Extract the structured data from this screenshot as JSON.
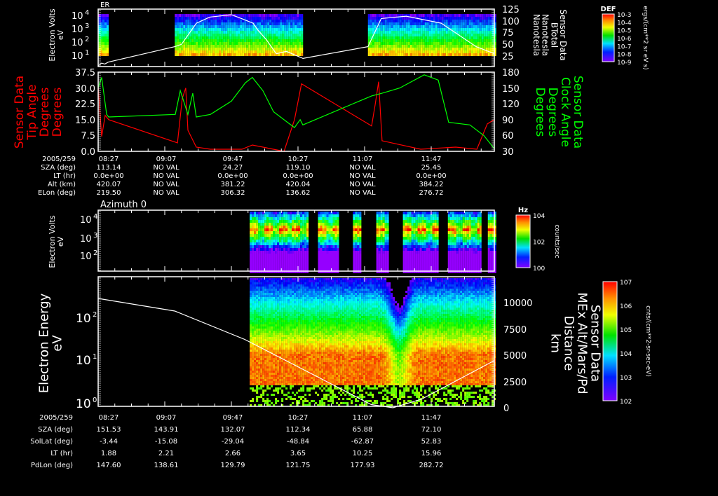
{
  "chart_data": [
    {
      "type": "heatmap",
      "title": "ER",
      "ylabel": [
        "Electron Volts",
        "eV"
      ],
      "yticks": [
        "10^1",
        "10^2",
        "10^3",
        "10^4"
      ],
      "right_axis": {
        "label": [
          "Sensor Data",
          "BTotal",
          "Nanotesla",
          "Nanotesla"
        ],
        "ticks": [
          "25",
          "50",
          "75",
          "100",
          "125"
        ],
        "range": [
          0,
          125
        ]
      },
      "colorbar": {
        "title": "DEF",
        "ticks": [
          "10^-9",
          "10^-8",
          "10^-7",
          "10^-6",
          "10^-5",
          "10^-4",
          "10^-3"
        ],
        "units": "ergs/(cm**2 sr eV s)"
      },
      "data_segments_min": [
        [
          0,
          6
        ],
        [
          46,
          123
        ],
        [
          162,
          238
        ]
      ],
      "line": {
        "name": "BTotal",
        "t_min": [
          0,
          2,
          4,
          6,
          46,
          50,
          59,
          67,
          80,
          86,
          93,
          96,
          101,
          107,
          113,
          123,
          162,
          170,
          185,
          206,
          227,
          238
        ],
        "values": [
          4,
          10,
          8,
          12,
          45,
          50,
          95,
          108,
          113,
          105,
          95,
          80,
          60,
          30,
          35,
          20,
          45,
          105,
          110,
          95,
          45,
          30
        ]
      }
    },
    {
      "type": "line",
      "left_axis": {
        "label": [
          "Sensor Data",
          "Tip Angle",
          "Degrees",
          "Degrees"
        ],
        "ticks": [
          "0.0",
          "7.5",
          "15.0",
          "22.5",
          "30.0",
          "37.5"
        ],
        "range": [
          0,
          37.5
        ],
        "color": "#ff0000"
      },
      "right_axis": {
        "label": [
          "Sensor Data",
          "Clock Angle",
          "Degrees",
          "Degrees"
        ],
        "ticks": [
          "30",
          "60",
          "90",
          "120",
          "150",
          "180"
        ],
        "range": [
          30,
          180
        ],
        "color": "#00ff00"
      },
      "series": [
        {
          "name": "Tip Angle",
          "color": "#ff0000",
          "t_min": [
            0,
            2.1,
            4.2,
            6.3,
            47.6,
            50.5,
            52.6,
            53.9,
            58.9,
            67.4,
            86.3,
            92.6,
            111.6,
            117.9,
            122.1,
            164.2,
            166.3,
            168.4,
            170.5,
            193.7,
            214.7,
            227.4,
            233.7,
            237.9
          ],
          "values": [
            31,
            7,
            17,
            15,
            4,
            25,
            30,
            10,
            2,
            1,
            1,
            3,
            0,
            15,
            32,
            12,
            22,
            33,
            5,
            1,
            2,
            1,
            13,
            15
          ]
        },
        {
          "name": "Clock Angle",
          "color": "#00ff00",
          "t_min": [
            0,
            2.1,
            5.1,
            6.3,
            46.3,
            49.3,
            53.9,
            56.8,
            58.9,
            67.4,
            80,
            88.4,
            92.6,
            98.9,
            105.3,
            113.7,
            117.9,
            121.3,
            122.9,
            164.2,
            170.5,
            181.1,
            195.8,
            204.2,
            210.5,
            223.2,
            231.6,
            237.9
          ],
          "values": [
            150,
            170,
            100,
            95,
            100,
            145,
            100,
            140,
            95,
            100,
            125,
            160,
            170,
            145,
            105,
            85,
            75,
            90,
            80,
            135,
            140,
            150,
            175,
            165,
            85,
            80,
            60,
            35
          ]
        }
      ]
    },
    {
      "type": "heatmap",
      "title": "Azimuth 0",
      "ylabel": [
        "Electron Volts",
        "eV"
      ],
      "yticks": [
        "10^2",
        "10^3",
        "10^4"
      ],
      "colorbar": {
        "title": "Hz",
        "ticks": [
          "10^0",
          "10^2",
          "10^4"
        ],
        "units": "counts/sec"
      },
      "data_segments_min": [
        [
          91,
          126
        ],
        [
          132,
          144
        ],
        [
          153,
          158
        ],
        [
          167,
          174
        ],
        [
          183,
          204
        ],
        [
          210,
          229
        ],
        [
          234,
          238
        ]
      ]
    },
    {
      "type": "heatmap",
      "ylabel": [
        "Electron Energy",
        "eV"
      ],
      "yticks": [
        "10^0",
        "10^1",
        "10^2"
      ],
      "right_axis": {
        "label": [
          "Sensor Data",
          "MEx Alt/Mars/Pd",
          "Distance",
          "km"
        ],
        "ticks": [
          "0",
          "2500",
          "5000",
          "7500",
          "10000"
        ],
        "range": [
          0,
          12500
        ]
      },
      "colorbar": {
        "ticks": [
          "10^2",
          "10^3",
          "10^4",
          "10^5",
          "10^6",
          "10^7"
        ],
        "units": "cnts/(cm**2-sr-sec-eV)"
      },
      "data_segments_min": [
        [
          91,
          238
        ]
      ],
      "line": {
        "name": "Distance",
        "t_min": [
          0,
          46,
          88,
          131,
          164,
          177,
          194,
          238
        ],
        "values": [
          10400,
          9200,
          6500,
          3000,
          300,
          0,
          800,
          4500
        ]
      }
    }
  ],
  "time_axis": {
    "labels": [
      "08:27",
      "09:07",
      "09:47",
      "10:27",
      "11:07",
      "11:47"
    ],
    "start": "08:27",
    "minutes_per_label": 40
  },
  "top_table": {
    "date": "2005/259",
    "rows": [
      {
        "label": "SZA (deg)",
        "values": [
          "113.14",
          "NO VAL",
          "24.27",
          "119.10",
          "NO VAL",
          "25.45"
        ]
      },
      {
        "label": "LT (hr)",
        "values": [
          "0.0e+00",
          "NO VAL",
          "0.0e+00",
          "0.0e+00",
          "NO VAL",
          "0.0e+00"
        ]
      },
      {
        "label": "Alt (km)",
        "values": [
          "420.07",
          "NO VAL",
          "381.22",
          "420.04",
          "NO VAL",
          "384.22"
        ]
      },
      {
        "label": "ELon (deg)",
        "values": [
          "219.50",
          "NO VAL",
          "306.32",
          "136.62",
          "NO VAL",
          "276.72"
        ]
      }
    ]
  },
  "bottom_table": {
    "date": "2005/259",
    "rows": [
      {
        "label": "SZA (deg)",
        "values": [
          "151.53",
          "143.91",
          "132.07",
          "112.34",
          "65.88",
          "72.10"
        ]
      },
      {
        "label": "SolLat (deg)",
        "values": [
          "-3.44",
          "-15.08",
          "-29.04",
          "-48.84",
          "-62.87",
          "52.83"
        ]
      },
      {
        "label": "LT (hr)",
        "values": [
          "1.88",
          "2.21",
          "2.66",
          "3.65",
          "10.25",
          "15.96"
        ]
      },
      {
        "label": "PdLon (deg)",
        "values": [
          "147.60",
          "138.61",
          "129.79",
          "121.75",
          "177.93",
          "282.72"
        ]
      }
    ]
  }
}
